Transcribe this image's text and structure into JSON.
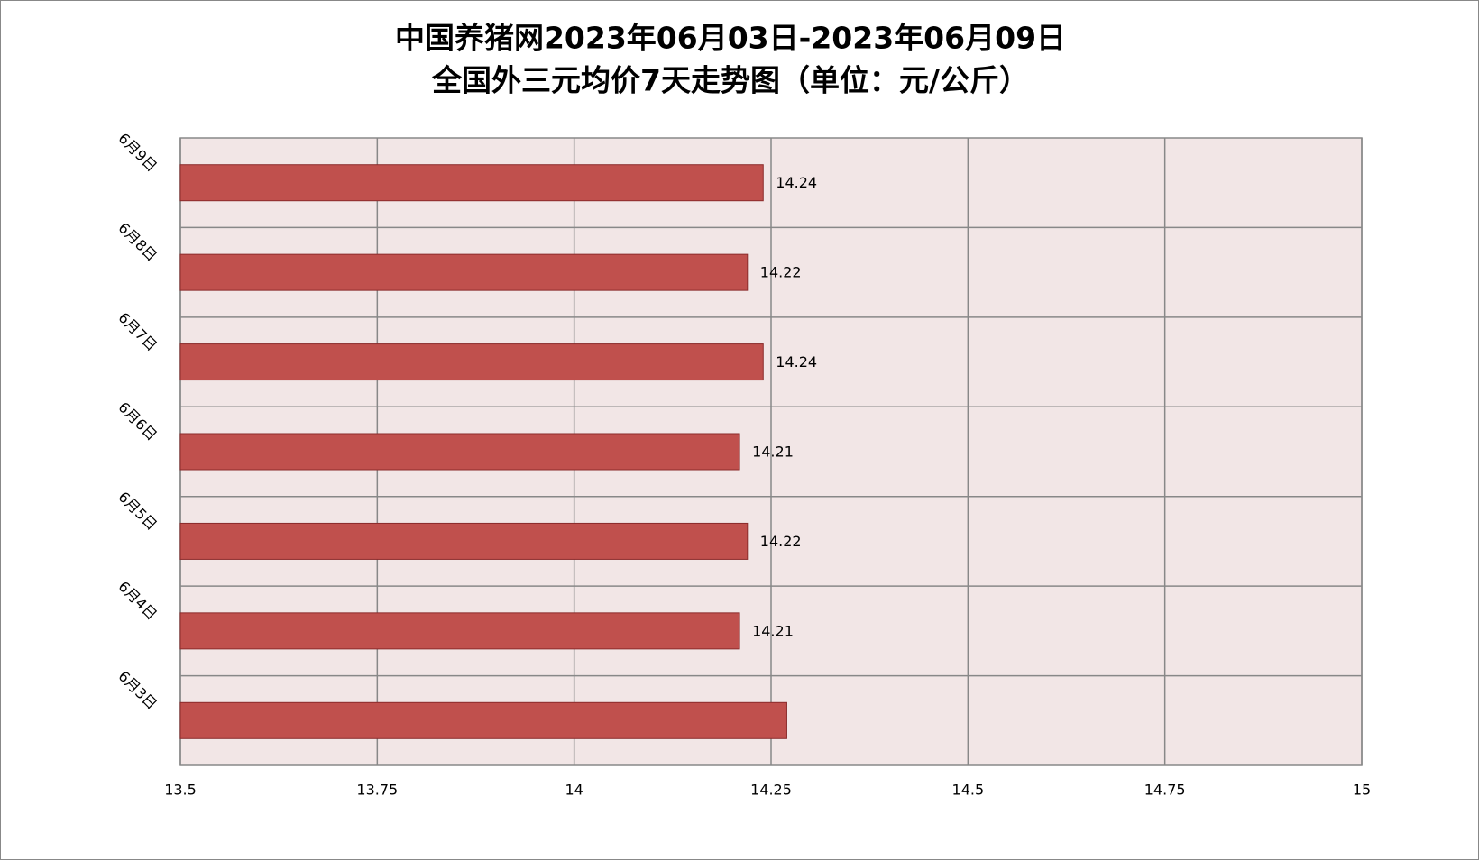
{
  "chart_data": {
    "type": "hbar",
    "title": [
      "中国养猪网2023年06月03日-2023年06月09日",
      "全国外三元均价7天走势图（单位：元/公斤）"
    ],
    "categories": [
      "6月3日",
      "6月4日",
      "6月5日",
      "6月6日",
      "6月7日",
      "6月8日",
      "6月9日"
    ],
    "values": [
      14.27,
      14.21,
      14.22,
      14.21,
      14.24,
      14.22,
      14.24
    ],
    "value_labels": [
      null,
      "14.21",
      "14.22",
      "14.21",
      "14.24",
      "14.22",
      "14.24"
    ],
    "color": "#c0504d",
    "xlim": [
      13.5,
      15
    ],
    "xticks": [
      13.5,
      13.75,
      14,
      14.25,
      14.5,
      14.75,
      15
    ],
    "grid": true
  }
}
